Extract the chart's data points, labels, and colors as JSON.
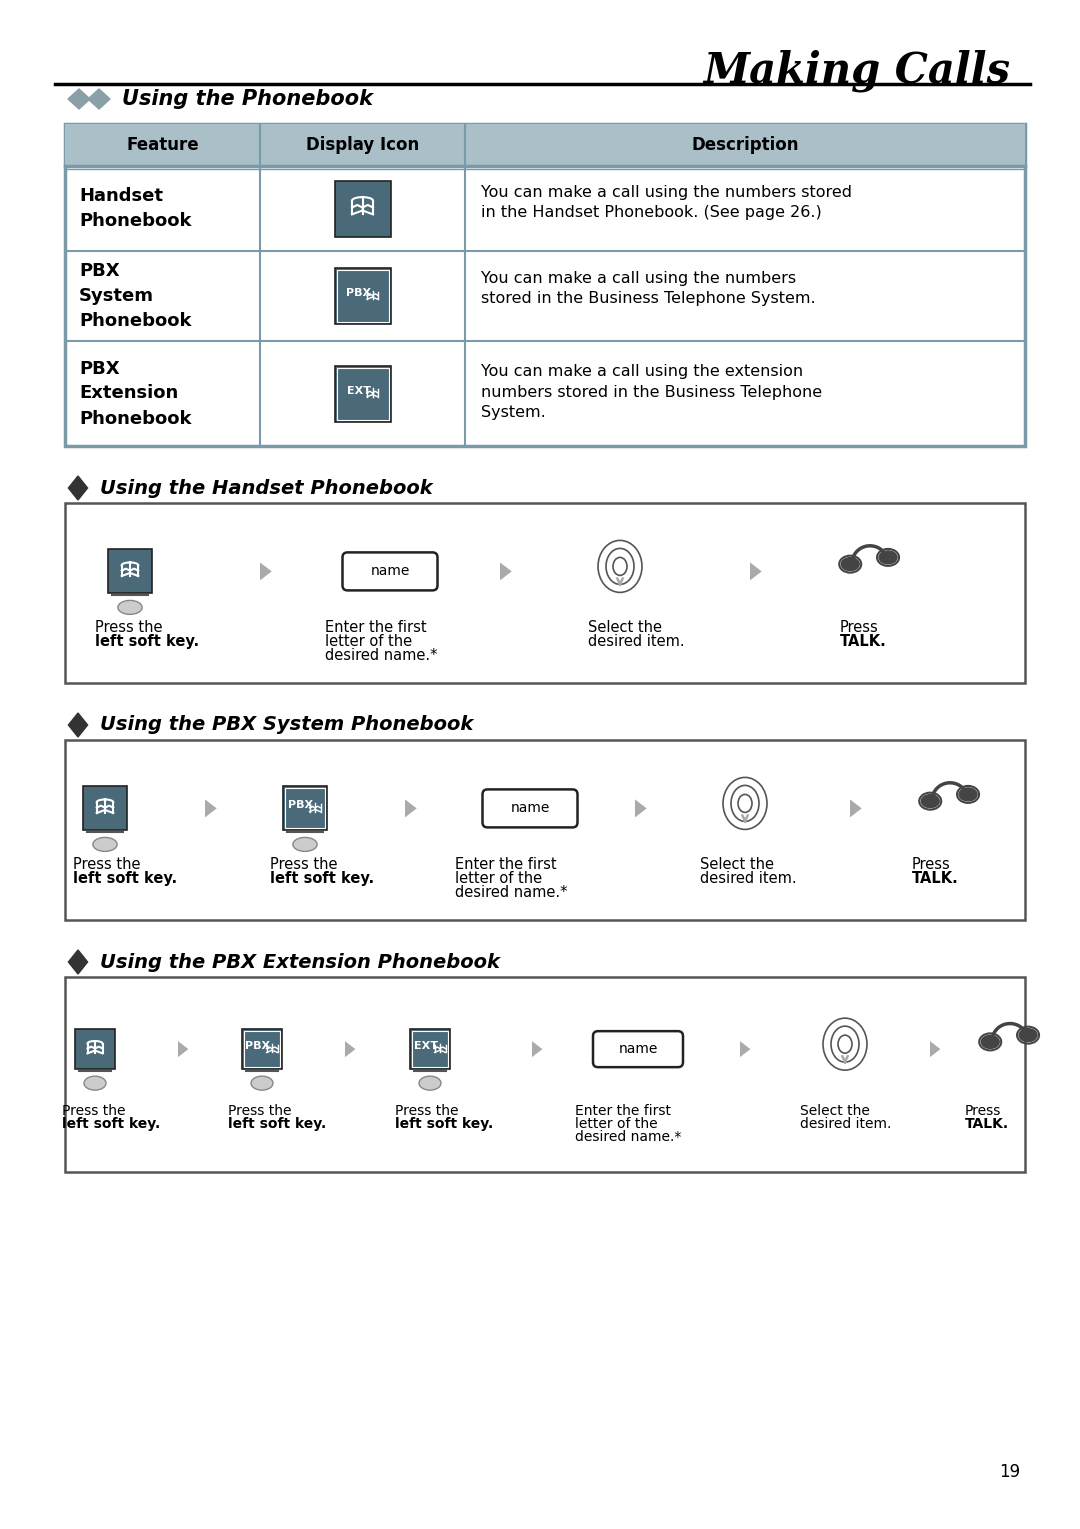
{
  "page_title": "Making Calls",
  "bg_color": "#ffffff",
  "section1_title": "Using the Phonebook",
  "table_header": [
    "Feature",
    "Display Icon",
    "Description"
  ],
  "table_rows": [
    {
      "feature": "Handset\nPhonebook",
      "icon_type": "book",
      "description": "You can make a call using the numbers stored\nin the Handset Phonebook. (See page 26.)"
    },
    {
      "feature": "PBX\nSystem\nPhonebook",
      "icon_type": "pbx",
      "description": "You can make a call using the numbers\nstored in the Business Telephone System."
    },
    {
      "feature": "PBX\nExtension\nPhonebook",
      "icon_type": "ext",
      "description": "You can make a call using the extension\nnumbers stored in the Business Telephone\nSystem."
    }
  ],
  "section2_title": "Using the Handset Phonebook",
  "section3_title": "Using the PBX System Phonebook",
  "section4_title": "Using the PBX Extension Phonebook",
  "diamond_color_main": "#7a8a90",
  "diamond_color_section": "#222222",
  "table_header_bg": "#8aabb8",
  "table_border_color": "#7a9aaa",
  "icon_bg": "#4a6a7a",
  "flow_box_bg": "#ffffff",
  "flow_border_color": "#555555",
  "page_number": "19",
  "title_line_color": "#111111",
  "arrow_color": "#aaaaaa"
}
